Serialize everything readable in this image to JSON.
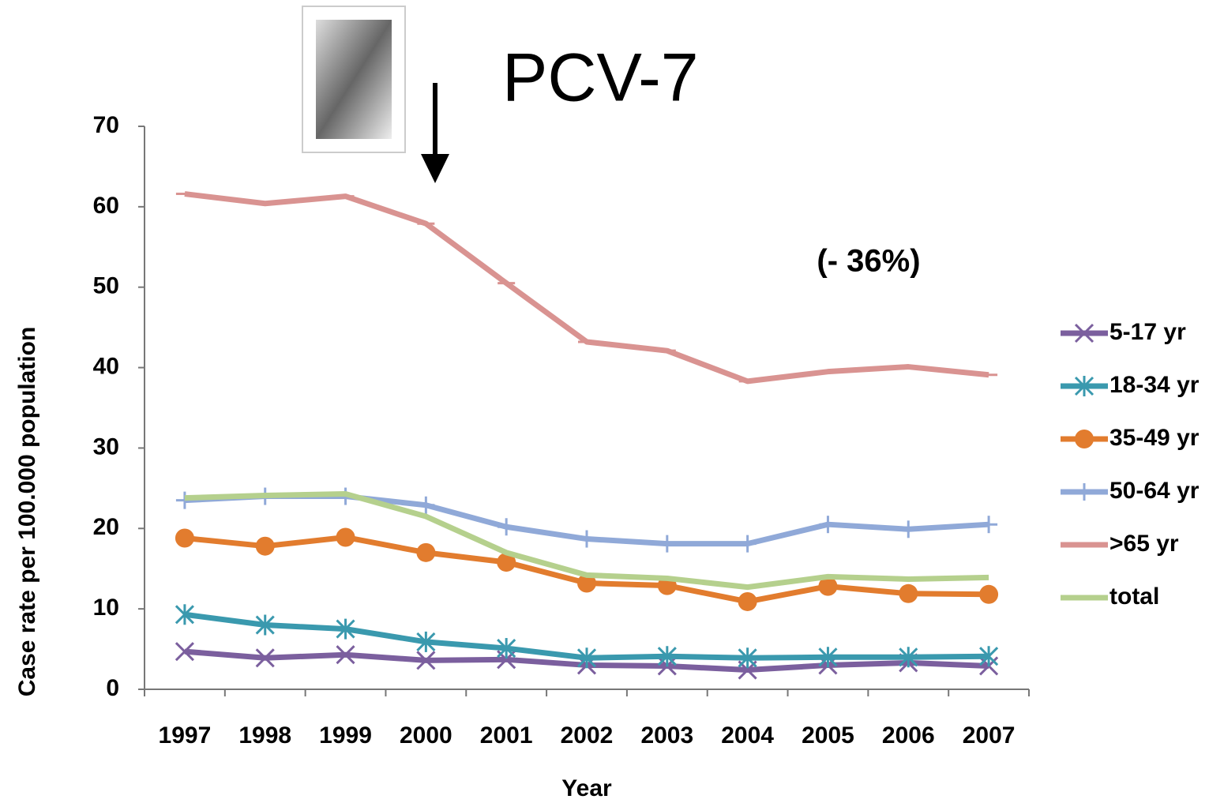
{
  "chart_data": {
    "type": "line",
    "annotations": [
      "PCV-7",
      "(- 36%)"
    ],
    "x_label": "Year",
    "y_label": "Case rate per 100.000 population",
    "categories": [
      "1997",
      "1998",
      "1999",
      "2000",
      "2001",
      "2002",
      "2003",
      "2004",
      "2005",
      "2006",
      "2007"
    ],
    "series": [
      {
        "name": "5-17 yr",
        "color": "#7b5f9e",
        "marker": "x",
        "values": [
          4.7,
          3.9,
          4.3,
          3.6,
          3.7,
          3.0,
          2.9,
          2.4,
          3.0,
          3.3,
          2.9
        ]
      },
      {
        "name": "18-34 yr",
        "color": "#3a99ae",
        "marker": "asterisk",
        "values": [
          9.3,
          8.0,
          7.5,
          5.9,
          5.1,
          3.9,
          4.1,
          3.9,
          4.0,
          4.0,
          4.1
        ]
      },
      {
        "name": "35-49 yr",
        "color": "#e27c2e",
        "marker": "circle",
        "values": [
          18.8,
          17.8,
          18.9,
          17.0,
          15.8,
          13.2,
          12.9,
          10.9,
          12.8,
          11.9,
          11.8
        ]
      },
      {
        "name": "50-64 yr",
        "color": "#90a9d8",
        "marker": "plus",
        "values": [
          23.5,
          24.0,
          24.0,
          22.9,
          20.2,
          18.7,
          18.1,
          18.1,
          20.5,
          19.9,
          20.5
        ]
      },
      {
        "name": ">65 yr",
        "color": "#d99391",
        "marker": "dash",
        "values": [
          61.6,
          60.4,
          61.3,
          57.9,
          50.5,
          43.2,
          42.1,
          38.3,
          39.5,
          40.1,
          39.1
        ]
      },
      {
        "name": "total",
        "color": "#b5d08d",
        "marker": "none",
        "values": [
          23.8,
          24.1,
          24.3,
          21.5,
          17.0,
          14.2,
          13.8,
          12.7,
          14.0,
          13.7,
          13.9
        ]
      }
    ],
    "ylim": [
      0,
      70
    ],
    "yticks": [
      0,
      10,
      20,
      30,
      40,
      50,
      60,
      70
    ],
    "grid": false,
    "legend": "right"
  }
}
